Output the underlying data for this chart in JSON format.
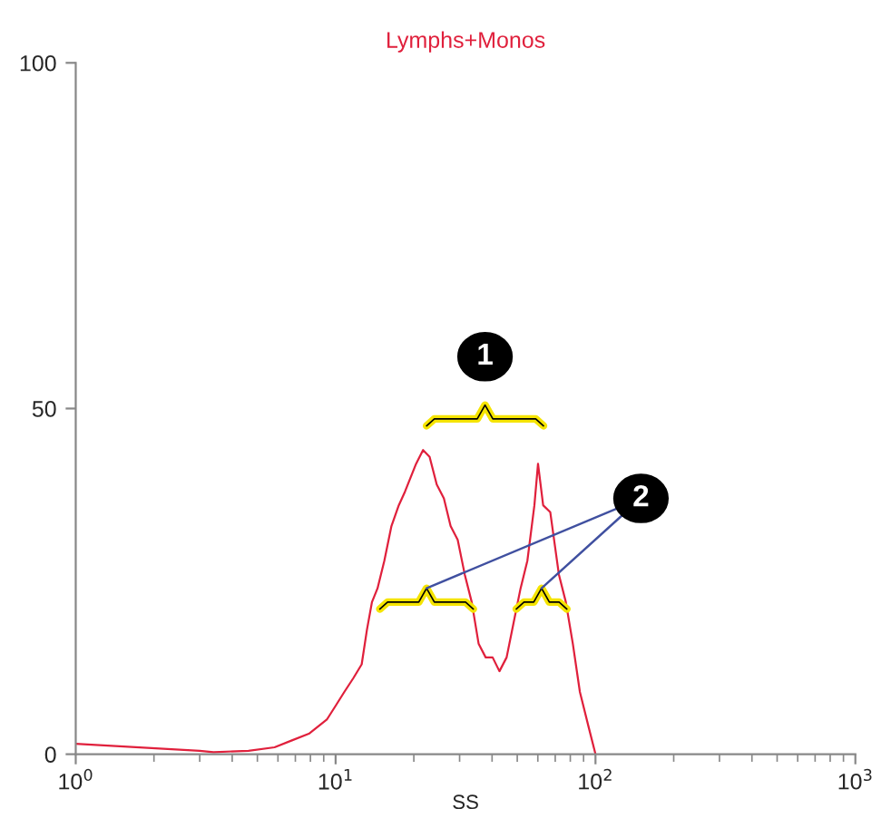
{
  "chart_data": {
    "type": "line",
    "title": "Lymphs+Monos",
    "xlabel": "SS",
    "log": "x",
    "grid": false,
    "marker": "none",
    "line_style": "solid",
    "annotations": [
      "1",
      "2"
    ],
    "series": [
      {
        "color": "#e0203c",
        "x": [
          1,
          3,
          3.39,
          4.62,
          5.82,
          6.79,
          7.93,
          9.25,
          10,
          10.8,
          11.7,
          12.6,
          13.2,
          13.8,
          14.5,
          15.4,
          16.4,
          17.5,
          18.5,
          20.4,
          21.7,
          23.0,
          24.5,
          26.1,
          27.7,
          29.5,
          31.4,
          33.4,
          35.5,
          37.8,
          40.2,
          42.7,
          45.5,
          48.4,
          51.5,
          54.7,
          58.2,
          60.1,
          62.9,
          67.0,
          72.3,
          76.9,
          81.8,
          87.1,
          94.0,
          100
        ],
        "values": [
          1.5,
          0.5,
          0.3,
          0.5,
          1,
          2,
          3,
          5,
          7,
          9,
          11,
          13,
          18,
          22,
          24,
          28,
          33,
          36,
          38,
          42,
          44,
          43,
          39,
          37,
          33,
          31,
          26,
          22,
          16,
          14,
          14,
          12,
          14,
          19,
          24,
          28,
          36,
          42,
          36,
          35,
          26,
          22,
          16,
          9,
          4,
          0
        ]
      }
    ],
    "xlim": [
      1,
      1000
    ],
    "xticks": [
      {
        "value": 1,
        "label": "10$^{0}$"
      },
      {
        "value": 10,
        "label": "10$^{1}$"
      },
      {
        "value": 100,
        "label": "10$^{2}$"
      },
      {
        "value": 1000,
        "label": "10$^{3}$"
      }
    ],
    "ylim": [
      0,
      100
    ],
    "yticks": [
      0,
      50,
      100
    ]
  }
}
